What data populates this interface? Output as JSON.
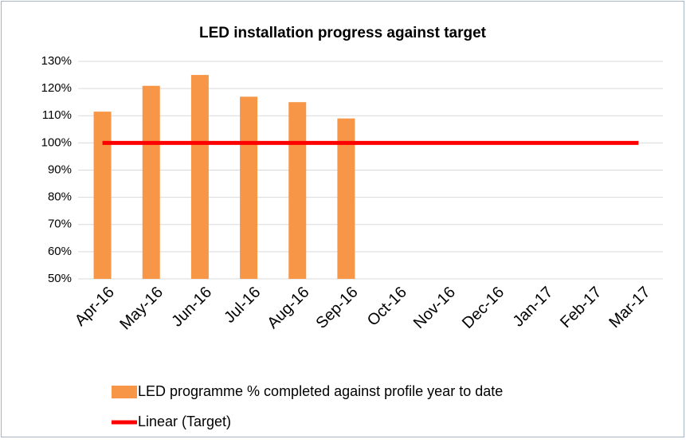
{
  "chart_data": {
    "type": "bar",
    "title": "LED installation progress against target",
    "categories": [
      "Apr-16",
      "May-16",
      "Jun-16",
      "Jul-16",
      "Aug-16",
      "Sep-16",
      "Oct-16",
      "Nov-16",
      "Dec-16",
      "Jan-17",
      "Feb-17",
      "Mar-17"
    ],
    "series": [
      {
        "name": "LED programme % completed against profile year to date",
        "type": "bar",
        "color": "#f79646",
        "values": [
          111.5,
          121,
          125,
          117,
          115,
          109,
          null,
          null,
          null,
          null,
          null,
          null
        ]
      },
      {
        "name": "Linear (Target)",
        "type": "line",
        "color": "#ff0000",
        "values": [
          100,
          100,
          100,
          100,
          100,
          100,
          100,
          100,
          100,
          100,
          100,
          100
        ]
      }
    ],
    "ylim": [
      50,
      130
    ],
    "yticks": [
      {
        "value": 50,
        "label": "50%"
      },
      {
        "value": 60,
        "label": "60%"
      },
      {
        "value": 70,
        "label": "70%"
      },
      {
        "value": 80,
        "label": "80%"
      },
      {
        "value": 90,
        "label": "90%"
      },
      {
        "value": 100,
        "label": "100%"
      },
      {
        "value": 110,
        "label": "110%"
      },
      {
        "value": 120,
        "label": "120%"
      },
      {
        "value": 130,
        "label": "130%"
      }
    ],
    "grid": true
  }
}
